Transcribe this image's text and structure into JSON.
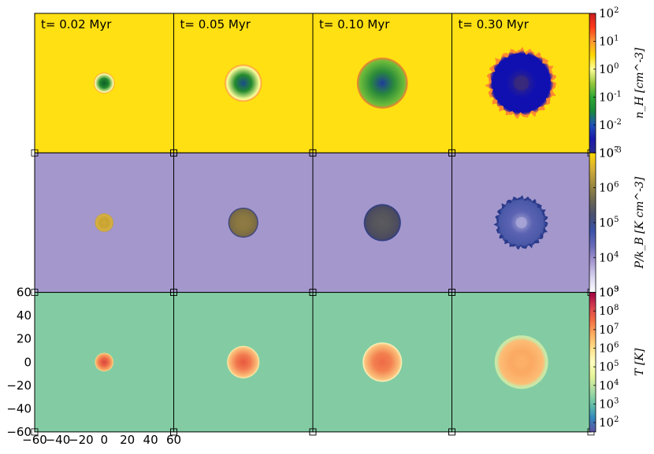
{
  "chart_data": {
    "type": "heatmap",
    "layout": "3 rows x 4 columns image grid with shared colorbars",
    "columns": [
      "t= 0.02 Myr",
      "t= 0.05 Myr",
      "t= 0.10 Myr",
      "t= 0.30 Myr"
    ],
    "axes": {
      "x_ticks": [
        "−60",
        "−40",
        "−20",
        "0",
        "20",
        "40",
        "60"
      ],
      "y_ticks": [
        "60",
        "40",
        "20",
        "0",
        "−20",
        "−40",
        "−60"
      ],
      "xlim": [
        -60,
        60
      ],
      "ylim": [
        -60,
        60
      ],
      "x_tick_values": [
        -60,
        -40,
        -20,
        0,
        20,
        40,
        60
      ],
      "y_tick_values": [
        60,
        40,
        20,
        0,
        -20,
        -40,
        -60
      ]
    },
    "rows": [
      {
        "quantity": "density",
        "colorbar_label": "n_H [cm^-3]",
        "colorbar_log_min": -3,
        "colorbar_log_max": 2,
        "colorbar_ticks": [
          {
            "base": "10",
            "exp": "2",
            "log": 2
          },
          {
            "base": "10",
            "exp": "1",
            "log": 1
          },
          {
            "base": "10",
            "exp": "0",
            "log": 0
          },
          {
            "base": "10",
            "exp": "-1",
            "log": -1
          },
          {
            "base": "10",
            "exp": "-2",
            "log": -2
          },
          {
            "base": "10",
            "exp": "-3",
            "log": -3
          }
        ],
        "colormap": [
          "#2a2c8c",
          "#1a1aaa",
          "#1f52b8",
          "#1a8a3a",
          "#2ea833",
          "#98c83b",
          "#ffff99",
          "#ffd700",
          "#ff9933",
          "#ff3a1a",
          "#c81e1e"
        ],
        "background": "#ffe012",
        "bubble_radius": [
          9,
          16,
          22,
          29
        ],
        "bubble_colors": [
          {
            "center": "#0e5c2a",
            "inner": "#238a2d",
            "edge": "#ffffa8",
            "rim": "#ff8a30"
          },
          {
            "center": "#1a4a8a",
            "inner": "#238a2d",
            "edge": "#ffff9a",
            "rim": "#ff8a30"
          },
          {
            "center": "#1e3c9a",
            "inner": "#2a8a3a",
            "edge": "#6fbd3a",
            "rim": "#ff7a30"
          },
          {
            "center": "#3a2a7a",
            "inner": "#1010b0",
            "edge": "#1010b0",
            "rim": "#ff8a30"
          }
        ]
      },
      {
        "quantity": "pressure",
        "colorbar_label": "P/k_B [K cm^-3]",
        "colorbar_log_min": 3,
        "colorbar_log_max": 7,
        "colorbar_ticks": [
          {
            "base": "10",
            "exp": "7",
            "log": 7
          },
          {
            "base": "10",
            "exp": "6",
            "log": 6
          },
          {
            "base": "10",
            "exp": "5",
            "log": 5
          },
          {
            "base": "10",
            "exp": "4",
            "log": 4
          },
          {
            "base": "10",
            "exp": "3",
            "log": 3
          }
        ],
        "colormap": [
          "#ffffff",
          "#d8d4f0",
          "#a898d0",
          "#6a6ab8",
          "#3a52a8",
          "#4a5070",
          "#6e6a50",
          "#a08c40",
          "#d6b038",
          "#ffd700"
        ],
        "background": "#a397cc",
        "bubble_radius": [
          8,
          13,
          16,
          22
        ],
        "bubble_colors": [
          {
            "center": "#d2a93a",
            "inner": "#c8a430",
            "edge": "#d8b048",
            "rim": "#b79a3a"
          },
          {
            "center": "#8f7a45",
            "inner": "#8a7840",
            "edge": "#7a6a45",
            "rim": "#2a3a8a"
          },
          {
            "center": "#5c5a60",
            "inner": "#55555c",
            "edge": "#4a4a60",
            "rim": "#2a3a8a"
          },
          {
            "center": "#a8a4d6",
            "inner": "#5b63b2",
            "edge": "#4a58a8",
            "rim": "#2a3a8a"
          }
        ]
      },
      {
        "quantity": "temperature",
        "colorbar_label": "T [K]",
        "colorbar_log_min": 1.5,
        "colorbar_log_max": 9,
        "colorbar_ticks": [
          {
            "base": "10",
            "exp": "9",
            "log": 9
          },
          {
            "base": "10",
            "exp": "8",
            "log": 8
          },
          {
            "base": "10",
            "exp": "7",
            "log": 7
          },
          {
            "base": "10",
            "exp": "6",
            "log": 6
          },
          {
            "base": "10",
            "exp": "5",
            "log": 5
          },
          {
            "base": "10",
            "exp": "4",
            "log": 4
          },
          {
            "base": "10",
            "exp": "3",
            "log": 3
          },
          {
            "base": "10",
            "exp": "2",
            "log": 2
          }
        ],
        "colormap": [
          "#5e4fa2",
          "#3288bd",
          "#66c2a5",
          "#abdda4",
          "#e6f598",
          "#ffffbf",
          "#fee08b",
          "#fdae61",
          "#f46d43",
          "#d53e4f",
          "#9e0142"
        ],
        "background": "#83cca3",
        "bubble_radius": [
          8,
          14,
          17,
          22
        ],
        "bubble_colors": [
          {
            "center": "#d9463f",
            "inner": "#ed6b47",
            "edge": "#fbb06a",
            "rim": "#fee08b"
          },
          {
            "center": "#e8583f",
            "inner": "#f27a4f",
            "edge": "#fcc07a",
            "rim": "#fef0b0"
          },
          {
            "center": "#ef6a47",
            "inner": "#f3804f",
            "edge": "#fbc27c",
            "rim": "#fef6c0"
          },
          {
            "center": "#fbb067",
            "inner": "#fba963",
            "edge": "#fcbd75",
            "rim": "#c8e8a8"
          }
        ]
      }
    ]
  }
}
